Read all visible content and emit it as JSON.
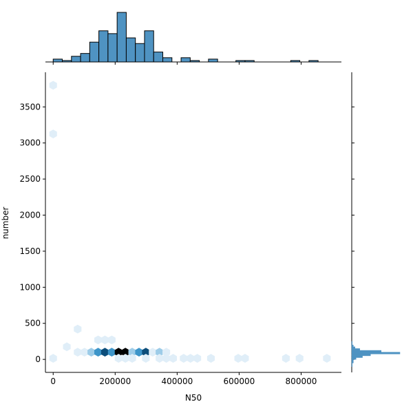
{
  "chart_data": {
    "type": "hexbin",
    "title": "",
    "xlabel": "N50",
    "ylabel": "number",
    "xlim": [
      -25000,
      930000
    ],
    "ylim": [
      -180,
      3980
    ],
    "x_ticks": [
      0,
      200000,
      400000,
      600000,
      800000
    ],
    "x_tick_labels": [
      "0",
      "200000",
      "400000",
      "600000",
      "800000"
    ],
    "y_ticks": [
      0,
      500,
      1000,
      1500,
      2000,
      2500,
      3000,
      3500
    ],
    "y_tick_labels": [
      "0",
      "500",
      "1000",
      "1500",
      "2000",
      "2500",
      "3000",
      "3500"
    ],
    "grid": false,
    "colors": {
      "hex_scale": [
        "#ffffff",
        "#e0eef8",
        "#9dcce8",
        "#3d95c9",
        "#0c4d7a",
        "#000000"
      ],
      "histogram_fill": "#4f93c2",
      "histogram_edge": "#000000",
      "axis": "#000000"
    },
    "hexbins": [
      {
        "x": 0,
        "y": 3800,
        "count": 1
      },
      {
        "x": 0,
        "y": 3125,
        "count": 1
      },
      {
        "x": 0,
        "y": 15,
        "count": 1
      },
      {
        "x": 44000,
        "y": 175,
        "count": 1
      },
      {
        "x": 79000,
        "y": 420,
        "count": 1
      },
      {
        "x": 79000,
        "y": 100,
        "count": 2
      },
      {
        "x": 101000,
        "y": 100,
        "count": 2
      },
      {
        "x": 123000,
        "y": 100,
        "count": 3
      },
      {
        "x": 145000,
        "y": 100,
        "count": 4
      },
      {
        "x": 145000,
        "y": 270,
        "count": 1
      },
      {
        "x": 167000,
        "y": 100,
        "count": 6
      },
      {
        "x": 167000,
        "y": 270,
        "count": 1
      },
      {
        "x": 189000,
        "y": 100,
        "count": 5
      },
      {
        "x": 189000,
        "y": 270,
        "count": 1
      },
      {
        "x": 211000,
        "y": 100,
        "count": 8
      },
      {
        "x": 233000,
        "y": 100,
        "count": 8
      },
      {
        "x": 255000,
        "y": 100,
        "count": 3
      },
      {
        "x": 277000,
        "y": 100,
        "count": 5
      },
      {
        "x": 299000,
        "y": 100,
        "count": 6
      },
      {
        "x": 321000,
        "y": 100,
        "count": 2
      },
      {
        "x": 343000,
        "y": 100,
        "count": 3
      },
      {
        "x": 365000,
        "y": 100,
        "count": 1
      },
      {
        "x": 211000,
        "y": 15,
        "count": 1
      },
      {
        "x": 233000,
        "y": 15,
        "count": 2
      },
      {
        "x": 255000,
        "y": 15,
        "count": 2
      },
      {
        "x": 299000,
        "y": 15,
        "count": 1
      },
      {
        "x": 343000,
        "y": 15,
        "count": 1
      },
      {
        "x": 365000,
        "y": 15,
        "count": 1
      },
      {
        "x": 387000,
        "y": 15,
        "count": 1
      },
      {
        "x": 421000,
        "y": 15,
        "count": 2
      },
      {
        "x": 443000,
        "y": 15,
        "count": 1
      },
      {
        "x": 465000,
        "y": 15,
        "count": 1
      },
      {
        "x": 509000,
        "y": 15,
        "count": 2
      },
      {
        "x": 597000,
        "y": 15,
        "count": 1
      },
      {
        "x": 619000,
        "y": 15,
        "count": 1
      },
      {
        "x": 751000,
        "y": 15,
        "count": 1
      },
      {
        "x": 795000,
        "y": 15,
        "count": 1
      },
      {
        "x": 883000,
        "y": 15,
        "count": 1
      }
    ],
    "x_marginal_histogram": {
      "bin_edges": [
        0,
        29475,
        58950,
        88425,
        117900,
        147375,
        176850,
        206325,
        235800,
        265275,
        294750,
        324225,
        353700,
        383175,
        412650,
        442125,
        471600,
        501075,
        530550,
        560025,
        589500,
        618975,
        648450,
        677925,
        707400,
        736875,
        766350,
        795825,
        825300,
        854775,
        884250
      ],
      "counts": [
        2,
        1,
        4,
        6,
        14,
        22,
        20,
        35,
        17,
        13,
        22,
        7,
        3,
        0,
        3,
        1,
        0,
        2,
        0,
        0,
        1,
        1,
        0,
        0,
        0,
        0,
        1,
        0,
        1,
        0
      ]
    },
    "y_marginal_histogram": {
      "bin_edges": [
        -100,
        -50,
        0,
        25,
        50,
        75,
        100,
        125,
        150,
        175,
        200,
        225,
        250
      ],
      "counts": [
        1,
        3,
        8,
        20,
        35,
        90,
        55,
        15,
        6,
        3,
        1,
        1
      ]
    }
  }
}
